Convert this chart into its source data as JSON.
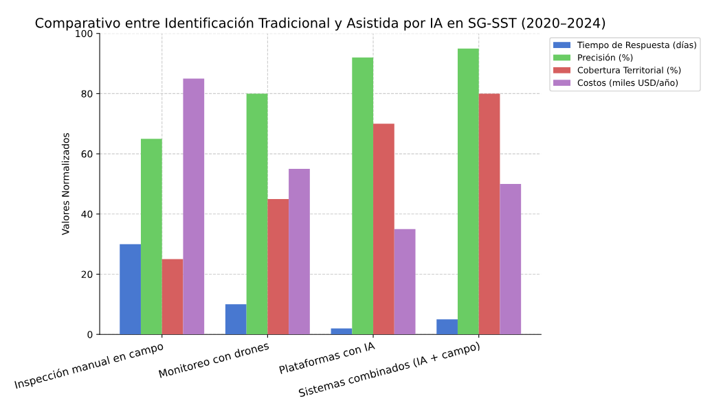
{
  "chart_data": {
    "type": "bar",
    "title": "Comparativo entre Identificación Tradicional y Asistida por IA en SG-SST (2020–2024)",
    "ylabel": "Valores Normalizados",
    "categories": [
      "Inspección manual en campo",
      "Monitoreo con drones",
      "Plataformas con IA",
      "Sistemas combinados (IA + campo)"
    ],
    "series": [
      {
        "name": "Tiempo de Respuesta (días)",
        "color": "#4878d0",
        "values": [
          30,
          10,
          2,
          5
        ]
      },
      {
        "name": "Precisión (%)",
        "color": "#6acc64",
        "values": [
          65,
          80,
          92,
          95
        ]
      },
      {
        "name": "Cobertura Territorial (%)",
        "color": "#d65f5f",
        "values": [
          25,
          45,
          70,
          80
        ]
      },
      {
        "name": "Costos (miles USD/año)",
        "color": "#b47cc7",
        "values": [
          85,
          55,
          35,
          50
        ]
      }
    ],
    "ylim": [
      0,
      100
    ],
    "yticks": [
      0,
      20,
      40,
      60,
      80,
      100
    ],
    "grid": true,
    "legend": "top right"
  }
}
